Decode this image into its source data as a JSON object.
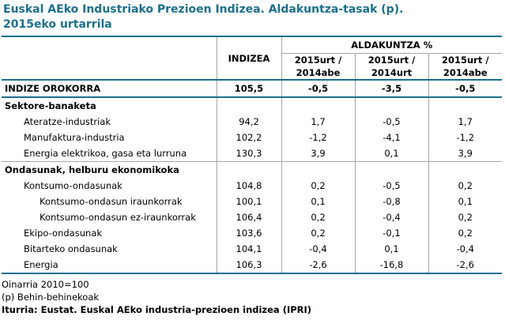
{
  "title": {
    "line1": "Euskal AEko Industriako Prezioen Indizea. Aldakuntza-tasak (p).",
    "line2": "2015eko urtarrila"
  },
  "header": {
    "indizea": "INDIZEA",
    "aldakuntza": "ALDAKUNTZA %",
    "col1": [
      "2015urt /",
      "2014abe"
    ],
    "col2": [
      "2015urt /",
      "2014urt"
    ],
    "col3": [
      "2015urt /",
      "2014abe"
    ]
  },
  "rows": [
    {
      "type": "main",
      "label": "INDIZE OROKORRA",
      "index": "105,5",
      "c1": "-0,5",
      "c2": "-3,5",
      "c3": "-0,5"
    },
    {
      "type": "section",
      "label": "Sektore-banaketa"
    },
    {
      "type": "item1",
      "label": "Ateratze-industriak",
      "index": "94,2",
      "c1": "1,7",
      "c2": "-0,5",
      "c3": "1,7"
    },
    {
      "type": "item1",
      "label": "Manufaktura-industria",
      "index": "102,2",
      "c1": "-1,2",
      "c2": "-4,1",
      "c3": "-1,2"
    },
    {
      "type": "item1-end",
      "label": "Energia elektrikoa, gasa eta lurruna",
      "index": "130,3",
      "c1": "3,9",
      "c2": "0,1",
      "c3": "3,9"
    },
    {
      "type": "section",
      "label": "Ondasunak, helburu ekonomikoka"
    },
    {
      "type": "item1",
      "label": "Kontsumo-ondasunak",
      "index": "104,8",
      "c1": "0,2",
      "c2": "-0,5",
      "c3": "0,2"
    },
    {
      "type": "item2",
      "label": "Kontsumo-ondasun iraunkorrak",
      "index": "100,1",
      "c1": "0,1",
      "c2": "-0,8",
      "c3": "0,1"
    },
    {
      "type": "item2",
      "label": "Kontsumo-ondasun ez-iraunkorrak",
      "index": "106,4",
      "c1": "0,2",
      "c2": "-0,4",
      "c3": "0,2"
    },
    {
      "type": "item1",
      "label": "Ekipo-ondasunak",
      "index": "103,6",
      "c1": "0,2",
      "c2": "-0,1",
      "c3": "0,2"
    },
    {
      "type": "item1",
      "label": "Bitarteko ondasunak",
      "index": "104,1",
      "c1": "-0,4",
      "c2": "0,1",
      "c3": "-0,4"
    },
    {
      "type": "item1-last",
      "label": "Energia",
      "index": "106,3",
      "c1": "-2,6",
      "c2": "-16,8",
      "c3": "-2,6"
    }
  ],
  "footnotes": {
    "base": "Oinarria 2010=100",
    "provisional": "(p) Behin-behinekoak",
    "source": "Iturria: Eustat. Euskal AEko industria-prezioen indizea (IPRI)"
  },
  "colors": {
    "accent": "#1a6f8f",
    "grid": "#a6a6a6"
  }
}
